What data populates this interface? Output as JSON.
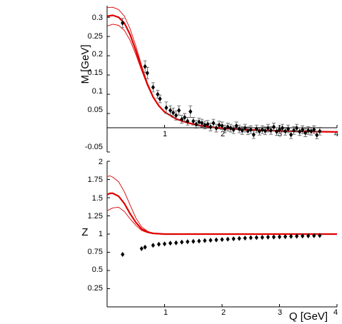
{
  "chart_data": [
    {
      "type": "line",
      "panel": "top",
      "ylabel": "M [GeV]",
      "xlabel": "",
      "xlim": [
        0,
        4
      ],
      "ylim": [
        -0.05,
        0.33
      ],
      "x_ticks": [
        "1",
        "2",
        "3",
        "4"
      ],
      "y_ticks": [
        "0.3",
        "0.25",
        "0.2",
        "0.15",
        "0.1",
        "0.05",
        "-0.05"
      ],
      "curves": [
        {
          "role": "upper band",
          "color": "#e00000",
          "points": [
            [
              0,
              0.325
            ],
            [
              0.1,
              0.326
            ],
            [
              0.2,
              0.32
            ],
            [
              0.3,
              0.303
            ],
            [
              0.4,
              0.27
            ],
            [
              0.5,
              0.225
            ],
            [
              0.6,
              0.175
            ],
            [
              0.7,
              0.13
            ],
            [
              0.8,
              0.095
            ],
            [
              0.9,
              0.072
            ],
            [
              1.0,
              0.055
            ],
            [
              1.2,
              0.037
            ],
            [
              1.4,
              0.027
            ],
            [
              1.6,
              0.02
            ],
            [
              1.8,
              0.015
            ],
            [
              2.0,
              0.012
            ],
            [
              2.4,
              0.008
            ],
            [
              2.8,
              0.006
            ],
            [
              3.2,
              0.004
            ],
            [
              3.6,
              0.003
            ],
            [
              4.0,
              0.002
            ]
          ]
        },
        {
          "role": "central",
          "color": "#e00000",
          "points": [
            [
              0,
              0.303
            ],
            [
              0.1,
              0.305
            ],
            [
              0.2,
              0.3
            ],
            [
              0.3,
              0.285
            ],
            [
              0.4,
              0.255
            ],
            [
              0.5,
              0.213
            ],
            [
              0.6,
              0.168
            ],
            [
              0.7,
              0.127
            ],
            [
              0.8,
              0.093
            ],
            [
              0.9,
              0.07
            ],
            [
              1.0,
              0.054
            ],
            [
              1.2,
              0.036
            ],
            [
              1.4,
              0.026
            ],
            [
              1.6,
              0.019
            ],
            [
              1.8,
              0.015
            ],
            [
              2.0,
              0.012
            ],
            [
              2.4,
              0.008
            ],
            [
              2.8,
              0.006
            ],
            [
              3.2,
              0.004
            ],
            [
              3.6,
              0.003
            ],
            [
              4.0,
              0.002
            ]
          ]
        },
        {
          "role": "lower band",
          "color": "#e00000",
          "points": [
            [
              0,
              0.277
            ],
            [
              0.1,
              0.282
            ],
            [
              0.2,
              0.279
            ],
            [
              0.3,
              0.266
            ],
            [
              0.4,
              0.24
            ],
            [
              0.5,
              0.203
            ],
            [
              0.6,
              0.162
            ],
            [
              0.7,
              0.123
            ],
            [
              0.8,
              0.091
            ],
            [
              0.9,
              0.069
            ],
            [
              1.0,
              0.053
            ],
            [
              1.2,
              0.035
            ],
            [
              1.4,
              0.025
            ],
            [
              1.6,
              0.019
            ],
            [
              1.8,
              0.014
            ],
            [
              2.0,
              0.011
            ],
            [
              2.4,
              0.008
            ],
            [
              2.8,
              0.006
            ],
            [
              3.2,
              0.004
            ],
            [
              3.6,
              0.003
            ],
            [
              4.0,
              0.002
            ]
          ]
        }
      ],
      "points": [
        {
          "x": 0.27,
          "y": 0.285,
          "err": 0.012
        },
        {
          "x": 0.66,
          "y": 0.172,
          "err": 0.015
        },
        {
          "x": 0.7,
          "y": 0.155,
          "err": 0.015
        },
        {
          "x": 0.8,
          "y": 0.118,
          "err": 0.012
        },
        {
          "x": 0.88,
          "y": 0.1,
          "err": 0.01
        },
        {
          "x": 0.92,
          "y": 0.088,
          "err": 0.01
        },
        {
          "x": 1.03,
          "y": 0.065,
          "err": 0.015
        },
        {
          "x": 1.1,
          "y": 0.058,
          "err": 0.012
        },
        {
          "x": 1.15,
          "y": 0.052,
          "err": 0.012
        },
        {
          "x": 1.2,
          "y": 0.045,
          "err": 0.012
        },
        {
          "x": 1.25,
          "y": 0.058,
          "err": 0.012
        },
        {
          "x": 1.3,
          "y": 0.035,
          "err": 0.01
        },
        {
          "x": 1.35,
          "y": 0.04,
          "err": 0.01
        },
        {
          "x": 1.4,
          "y": 0.03,
          "err": 0.01
        },
        {
          "x": 1.45,
          "y": 0.055,
          "err": 0.015
        },
        {
          "x": 1.5,
          "y": 0.03,
          "err": 0.01
        },
        {
          "x": 1.55,
          "y": 0.022,
          "err": 0.01
        },
        {
          "x": 1.6,
          "y": 0.028,
          "err": 0.01
        },
        {
          "x": 1.65,
          "y": 0.025,
          "err": 0.01
        },
        {
          "x": 1.7,
          "y": 0.02,
          "err": 0.01
        },
        {
          "x": 1.75,
          "y": 0.022,
          "err": 0.01
        },
        {
          "x": 1.8,
          "y": 0.015,
          "err": 0.01
        },
        {
          "x": 1.85,
          "y": 0.025,
          "err": 0.01
        },
        {
          "x": 1.9,
          "y": 0.012,
          "err": 0.01
        },
        {
          "x": 1.95,
          "y": 0.02,
          "err": 0.01
        },
        {
          "x": 2.0,
          "y": 0.018,
          "err": 0.01
        },
        {
          "x": 2.05,
          "y": 0.01,
          "err": 0.01
        },
        {
          "x": 2.1,
          "y": 0.015,
          "err": 0.01
        },
        {
          "x": 2.15,
          "y": 0.012,
          "err": 0.01
        },
        {
          "x": 2.2,
          "y": 0.008,
          "err": 0.01
        },
        {
          "x": 2.25,
          "y": 0.018,
          "err": 0.01
        },
        {
          "x": 2.3,
          "y": 0.01,
          "err": 0.01
        },
        {
          "x": 2.35,
          "y": 0.006,
          "err": 0.01
        },
        {
          "x": 2.4,
          "y": 0.012,
          "err": 0.01
        },
        {
          "x": 2.45,
          "y": 0.005,
          "err": 0.01
        },
        {
          "x": 2.5,
          "y": 0.008,
          "err": 0.01
        },
        {
          "x": 2.55,
          "y": -0.005,
          "err": 0.01
        },
        {
          "x": 2.6,
          "y": 0.01,
          "err": 0.01
        },
        {
          "x": 2.65,
          "y": 0.004,
          "err": 0.01
        },
        {
          "x": 2.7,
          "y": 0.008,
          "err": 0.01
        },
        {
          "x": 2.75,
          "y": 0.005,
          "err": 0.01
        },
        {
          "x": 2.8,
          "y": 0.012,
          "err": 0.01
        },
        {
          "x": 2.85,
          "y": 0.006,
          "err": 0.01
        },
        {
          "x": 2.9,
          "y": 0.015,
          "err": 0.01
        },
        {
          "x": 2.95,
          "y": 0.003,
          "err": 0.01
        },
        {
          "x": 3.0,
          "y": 0.008,
          "err": 0.01
        },
        {
          "x": 3.05,
          "y": 0.012,
          "err": 0.01
        },
        {
          "x": 3.1,
          "y": 0.004,
          "err": 0.01
        },
        {
          "x": 3.15,
          "y": 0.01,
          "err": 0.01
        },
        {
          "x": 3.2,
          "y": -0.005,
          "err": 0.01
        },
        {
          "x": 3.25,
          "y": 0.006,
          "err": 0.01
        },
        {
          "x": 3.3,
          "y": 0.012,
          "err": 0.01
        },
        {
          "x": 3.35,
          "y": 0.003,
          "err": 0.01
        },
        {
          "x": 3.4,
          "y": 0.008,
          "err": 0.01
        },
        {
          "x": 3.45,
          "y": 0.0,
          "err": 0.01
        },
        {
          "x": 3.5,
          "y": 0.006,
          "err": 0.01
        },
        {
          "x": 3.55,
          "y": 0.004,
          "err": 0.01
        },
        {
          "x": 3.6,
          "y": 0.008,
          "err": 0.01
        },
        {
          "x": 3.65,
          "y": -0.006,
          "err": 0.01
        },
        {
          "x": 3.7,
          "y": 0.004,
          "err": 0.01
        }
      ]
    },
    {
      "type": "line",
      "panel": "bottom",
      "ylabel": "Z",
      "xlabel": "Q [GeV]",
      "xlim": [
        0,
        4
      ],
      "ylim": [
        0,
        2
      ],
      "x_ticks": [
        "1",
        "2",
        "3",
        "4"
      ],
      "y_ticks": [
        "2",
        "1.75",
        "1.5",
        "1.25",
        "1",
        "0.75",
        "0.5",
        "0.25"
      ],
      "curves": [
        {
          "role": "upper band",
          "color": "#e00000",
          "points": [
            [
              0,
              1.79
            ],
            [
              0.05,
              1.8
            ],
            [
              0.1,
              1.78
            ],
            [
              0.2,
              1.72
            ],
            [
              0.3,
              1.58
            ],
            [
              0.4,
              1.4
            ],
            [
              0.5,
              1.22
            ],
            [
              0.6,
              1.1
            ],
            [
              0.7,
              1.04
            ],
            [
              0.8,
              1.01
            ],
            [
              1.0,
              1.0
            ],
            [
              1.5,
              1.0
            ],
            [
              2.0,
              1.0
            ],
            [
              3.0,
              1.0
            ],
            [
              4.0,
              1.0
            ]
          ]
        },
        {
          "role": "central",
          "color": "#e00000",
          "points": [
            [
              0,
              1.54
            ],
            [
              0.05,
              1.56
            ],
            [
              0.1,
              1.56
            ],
            [
              0.2,
              1.52
            ],
            [
              0.3,
              1.42
            ],
            [
              0.4,
              1.28
            ],
            [
              0.5,
              1.16
            ],
            [
              0.6,
              1.07
            ],
            [
              0.7,
              1.03
            ],
            [
              0.8,
              1.01
            ],
            [
              1.0,
              1.0
            ],
            [
              1.5,
              1.0
            ],
            [
              2.0,
              1.0
            ],
            [
              3.0,
              1.0
            ],
            [
              4.0,
              1.0
            ]
          ]
        },
        {
          "role": "lower band",
          "color": "#e00000",
          "points": [
            [
              0,
              1.32
            ],
            [
              0.05,
              1.34
            ],
            [
              0.1,
              1.36
            ],
            [
              0.2,
              1.37
            ],
            [
              0.3,
              1.31
            ],
            [
              0.4,
              1.21
            ],
            [
              0.5,
              1.12
            ],
            [
              0.6,
              1.05
            ],
            [
              0.7,
              1.02
            ],
            [
              0.8,
              1.005
            ],
            [
              1.0,
              1.0
            ],
            [
              1.5,
              1.0
            ],
            [
              2.0,
              1.0
            ],
            [
              3.0,
              1.0
            ],
            [
              4.0,
              1.0
            ]
          ]
        }
      ],
      "points": [
        {
          "x": 0.27,
          "y": 0.72
        },
        {
          "x": 0.6,
          "y": 0.8
        },
        {
          "x": 0.66,
          "y": 0.82
        },
        {
          "x": 0.8,
          "y": 0.845
        },
        {
          "x": 0.9,
          "y": 0.86
        },
        {
          "x": 1.0,
          "y": 0.865
        },
        {
          "x": 1.1,
          "y": 0.875
        },
        {
          "x": 1.2,
          "y": 0.88
        },
        {
          "x": 1.3,
          "y": 0.89
        },
        {
          "x": 1.4,
          "y": 0.895
        },
        {
          "x": 1.5,
          "y": 0.9
        },
        {
          "x": 1.6,
          "y": 0.905
        },
        {
          "x": 1.7,
          "y": 0.91
        },
        {
          "x": 1.8,
          "y": 0.915
        },
        {
          "x": 1.9,
          "y": 0.92
        },
        {
          "x": 2.0,
          "y": 0.925
        },
        {
          "x": 2.1,
          "y": 0.93
        },
        {
          "x": 2.2,
          "y": 0.935
        },
        {
          "x": 2.3,
          "y": 0.94
        },
        {
          "x": 2.4,
          "y": 0.945
        },
        {
          "x": 2.5,
          "y": 0.95
        },
        {
          "x": 2.6,
          "y": 0.952
        },
        {
          "x": 2.7,
          "y": 0.955
        },
        {
          "x": 2.8,
          "y": 0.958
        },
        {
          "x": 2.9,
          "y": 0.96
        },
        {
          "x": 3.0,
          "y": 0.962
        },
        {
          "x": 3.1,
          "y": 0.965
        },
        {
          "x": 3.2,
          "y": 0.968
        },
        {
          "x": 3.3,
          "y": 0.97
        },
        {
          "x": 3.4,
          "y": 0.973
        },
        {
          "x": 3.5,
          "y": 0.975
        },
        {
          "x": 3.6,
          "y": 0.978
        },
        {
          "x": 3.7,
          "y": 0.98
        }
      ]
    }
  ]
}
